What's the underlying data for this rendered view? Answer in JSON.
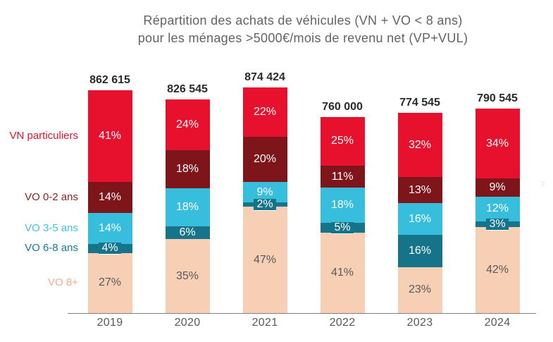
{
  "title": {
    "line1": "Répartition des achats de véhicules (VN + VO < 8 ans)",
    "line2": "pour les ménages >5000€/mois de revenu net (VP+VUL)"
  },
  "chart_data": {
    "type": "stacked-bar",
    "categories": [
      "2019",
      "2020",
      "2021",
      "2022",
      "2023",
      "2024"
    ],
    "totals_display": [
      "862 615",
      "826 545",
      "874 424",
      "760 000",
      "774 545",
      "790 545"
    ],
    "total_values": [
      862615,
      826545,
      874424,
      760000,
      774545,
      790545
    ],
    "unit": "%",
    "series": [
      {
        "name": "VO 8+",
        "color": "#f7cfb5",
        "label_color": "#f3ab8e",
        "text_color": "#595959",
        "chip": false,
        "values": [
          27,
          35,
          47,
          41,
          23,
          42
        ]
      },
      {
        "name": "VO 6-8 ans",
        "color": "#16748a",
        "label_color": "#1a7a8e",
        "text_color": "#ffffff",
        "chip": true,
        "values": [
          4,
          6,
          2,
          5,
          16,
          3
        ]
      },
      {
        "name": "VO 3-5 ans",
        "color": "#38bedd",
        "label_color": "#3fc2de",
        "text_color": "#ffffff",
        "chip": false,
        "values": [
          14,
          18,
          9,
          18,
          16,
          12
        ]
      },
      {
        "name": "VO 0-2 ans",
        "color": "#7d151b",
        "label_color": "#8e2124",
        "text_color": "#ffffff",
        "chip": false,
        "values": [
          14,
          18,
          20,
          11,
          13,
          9
        ]
      },
      {
        "name": "VN particuliers",
        "color": "#e7112d",
        "label_color": "#e8112d",
        "text_color": "#ffffff",
        "chip": false,
        "values": [
          41,
          24,
          22,
          25,
          32,
          34
        ]
      }
    ],
    "legend_position": "left",
    "grid": false
  },
  "decor": {
    "chevron": "›"
  }
}
